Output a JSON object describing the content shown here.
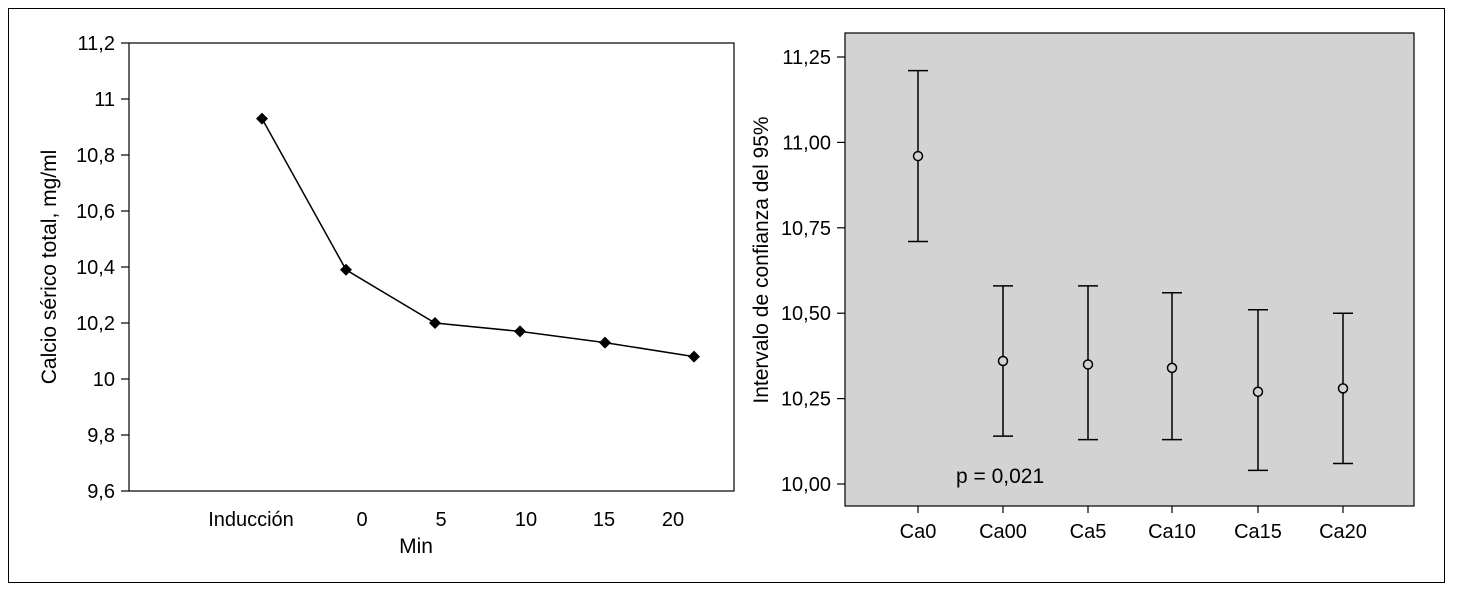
{
  "chart_data": [
    {
      "type": "line",
      "title": "",
      "xlabel": "Min",
      "ylabel": "Calcio sérico total, mg/ml",
      "ylim": [
        9.6,
        11.2
      ],
      "yticks": [
        "9,6",
        "9,8",
        "10",
        "10,2",
        "10,4",
        "10,6",
        "10,8",
        "11",
        "11,2"
      ],
      "ytick_values": [
        9.6,
        9.8,
        10.0,
        10.2,
        10.4,
        10.6,
        10.8,
        11.0,
        11.2
      ],
      "categories": [
        "Inducción",
        "0",
        "5",
        "10",
        "15",
        "20"
      ],
      "values": [
        10.93,
        10.39,
        10.2,
        10.17,
        10.13,
        10.08
      ],
      "grid": false,
      "marker": "diamond"
    },
    {
      "type": "scatter",
      "subtype": "error-bar",
      "title": "",
      "xlabel": "",
      "ylabel": "Intervalo de confianza del 95%",
      "ylim": [
        9.97,
        11.25
      ],
      "yticks": [
        "10,00",
        "10,25",
        "10,50",
        "10,75",
        "11,00",
        "11,25"
      ],
      "ytick_values": [
        10.0,
        10.25,
        10.5,
        10.75,
        11.0,
        11.25
      ],
      "categories": [
        "Ca0",
        "Ca00",
        "Ca5",
        "Ca10",
        "Ca15",
        "Ca20"
      ],
      "means": [
        10.96,
        10.36,
        10.35,
        10.34,
        10.27,
        10.28
      ],
      "lower": [
        10.71,
        10.14,
        10.13,
        10.13,
        10.04,
        10.06
      ],
      "upper": [
        11.21,
        10.58,
        10.58,
        10.56,
        10.51,
        10.5
      ],
      "annotation": "p = 0,021",
      "background": "#d3d3d3",
      "grid": false
    }
  ]
}
